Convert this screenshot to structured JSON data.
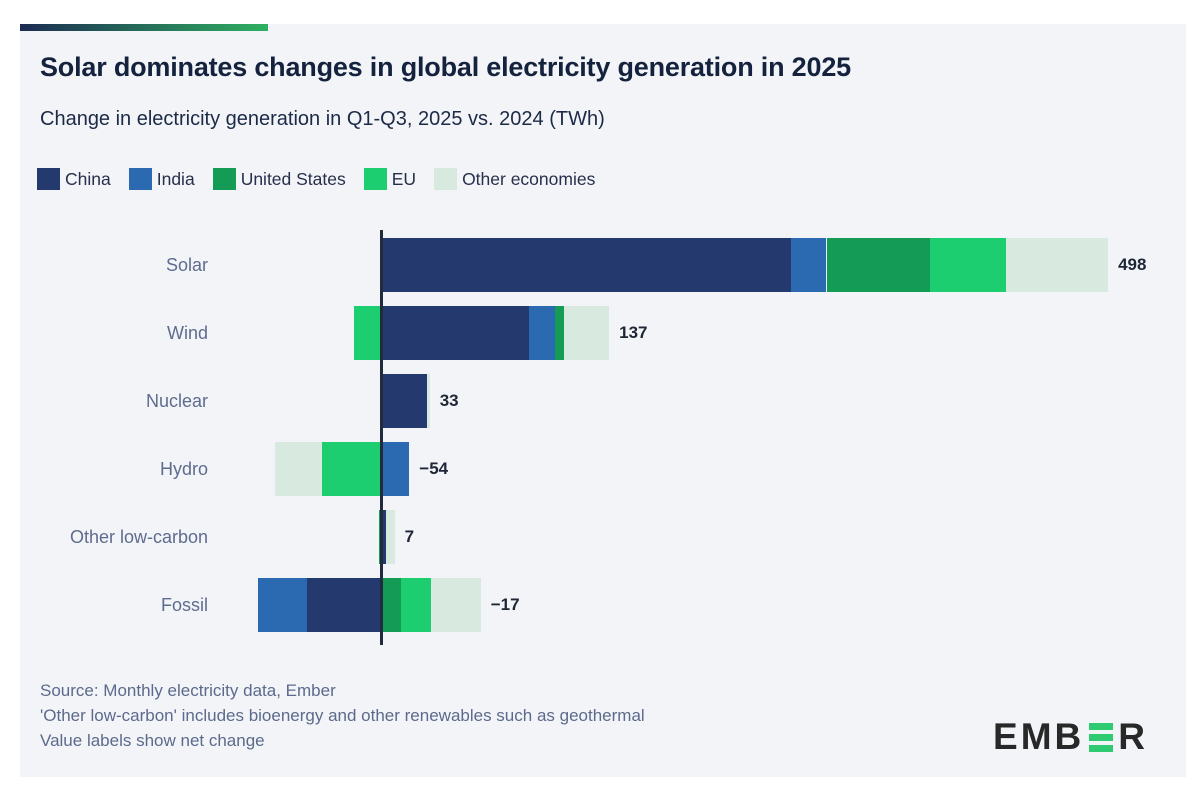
{
  "page": {
    "background": "#ffffff",
    "panel_background": "#f2f4f8",
    "accent_gradient_start": "#1c2b52",
    "accent_gradient_end": "#2fb061"
  },
  "header": {
    "title": "Solar dominates changes in global electricity generation in 2025",
    "subtitle": "Change in electricity generation in Q1-Q3, 2025 vs. 2024 (TWh)"
  },
  "legend": {
    "items": [
      {
        "label": "China",
        "color": "#24396e"
      },
      {
        "label": "India",
        "color": "#2b6ab1"
      },
      {
        "label": "United States",
        "color": "#149b55"
      },
      {
        "label": "EU",
        "color": "#1dce70"
      },
      {
        "label": "Other economies",
        "color": "#d8eae0"
      }
    ]
  },
  "chart_data": {
    "type": "bar",
    "orientation": "horizontal",
    "stacked": true,
    "unit": "TWh",
    "title": "Solar dominates changes in global electricity generation in 2025",
    "subtitle": "Change in electricity generation in Q1-Q3, 2025 vs. 2024 (TWh)",
    "categories": [
      "Solar",
      "Wind",
      "Nuclear",
      "Hydro",
      "Other low-carbon",
      "Fossil"
    ],
    "series": [
      {
        "name": "China",
        "color": "#24396e",
        "values": [
          281,
          101,
          31,
          0,
          3,
          -51
        ]
      },
      {
        "name": "India",
        "color": "#2b6ab1",
        "values": [
          24,
          18,
          0,
          19,
          0,
          -34
        ]
      },
      {
        "name": "United States",
        "color": "#149b55",
        "values": [
          71,
          6,
          0,
          0,
          -2,
          13
        ]
      },
      {
        "name": "EU",
        "color": "#1dce70",
        "values": [
          52,
          -19,
          0,
          -41,
          0,
          21
        ]
      },
      {
        "name": "Other economies",
        "color": "#d8eae0",
        "values": [
          70,
          31,
          2,
          -32,
          6,
          34
        ]
      }
    ],
    "net_change_values": [
      498,
      137,
      33,
      -54,
      7,
      -17
    ],
    "net_change_labels": [
      "498",
      "137",
      "33",
      "−54",
      "7",
      "−17"
    ],
    "xlim": [
      -108,
      524
    ],
    "grid": false,
    "legend_position": "top",
    "value_labels_note": "Value labels show net change",
    "zero_axis_color": "#202c3c"
  },
  "footer": {
    "lines": [
      "Source: Monthly electricity data, Ember",
      "'Other low-carbon' includes bioenergy and other renewables such as geothermal",
      "Value labels show net change"
    ]
  },
  "logo": {
    "name": "EMBER",
    "text_before": "EMB",
    "text_after": "R",
    "dark_color": "#282828",
    "green_color": "#2ecb71"
  }
}
